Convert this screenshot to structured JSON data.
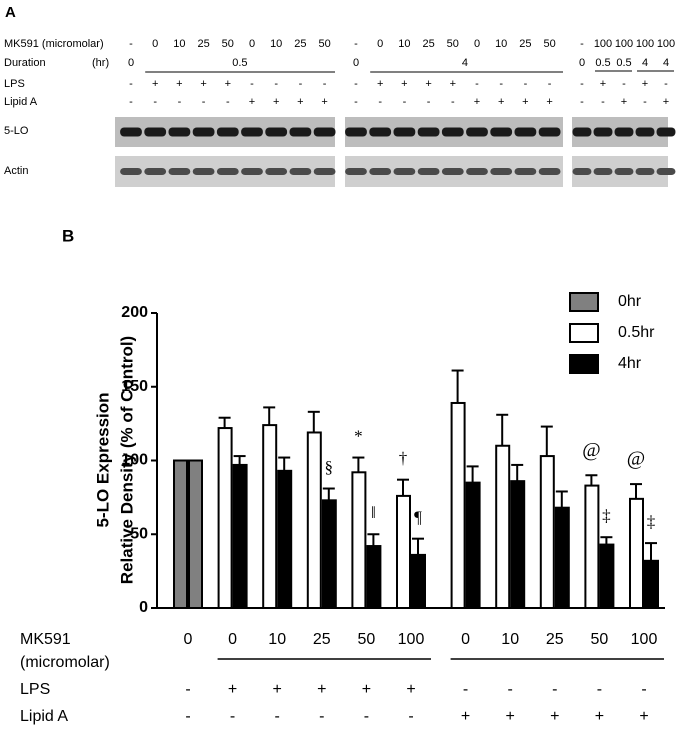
{
  "panel_a": {
    "label": "A",
    "row_labels": {
      "mk591": "MK591 (micromolar)",
      "duration": "Duration",
      "duration_unit": "(hr)",
      "lps": "LPS",
      "lipid_a": "Lipid A",
      "blot_5lo": "5-LO",
      "blot_actin": "Actin"
    },
    "groups": [
      {
        "mk591": [
          "-",
          "0",
          "10",
          "25",
          "50",
          "0",
          "10",
          "25",
          "50"
        ],
        "duration_control": "0",
        "duration": "0.5",
        "lps": [
          "-",
          "+",
          "+",
          "+",
          "+",
          "-",
          "-",
          "-",
          "-"
        ],
        "lipid_a": [
          "-",
          "-",
          "-",
          "-",
          "-",
          "+",
          "+",
          "+",
          "+"
        ]
      },
      {
        "mk591": [
          "-",
          "0",
          "10",
          "25",
          "50",
          "0",
          "10",
          "25",
          "50"
        ],
        "duration_control": "0",
        "duration": "4",
        "lps": [
          "-",
          "+",
          "+",
          "+",
          "+",
          "-",
          "-",
          "-",
          "-"
        ],
        "lipid_a": [
          "-",
          "-",
          "-",
          "-",
          "-",
          "+",
          "+",
          "+",
          "+"
        ]
      },
      {
        "mk591": [
          "-",
          "100",
          "100",
          "100",
          "100"
        ],
        "durations": [
          "0",
          "0.5",
          "0.5",
          "4",
          "4"
        ],
        "lps": [
          "-",
          "+",
          "-",
          "+",
          "-"
        ],
        "lipid_a": [
          "-",
          "-",
          "+",
          "-",
          "+"
        ]
      }
    ]
  },
  "chart_data": {
    "type": "bar",
    "panel_label": "B",
    "ylabel": [
      "5-LO Expression",
      "Relative Density (% of Control)"
    ],
    "x_label": [
      "MK591",
      "(micromolar)"
    ],
    "categories": [
      "0",
      "0",
      "10",
      "25",
      "50",
      "100",
      "0",
      "10",
      "25",
      "50",
      "100"
    ],
    "ylim": [
      0,
      200
    ],
    "yticks": [
      0,
      50,
      100,
      150,
      200
    ],
    "legend": "upper right",
    "series": [
      {
        "name": "0hr",
        "color": "#808080",
        "values": [
          100,
          null,
          null,
          null,
          null,
          null,
          null,
          null,
          null,
          null,
          null
        ]
      },
      {
        "name": "0hr",
        "color": "#808080",
        "values": [
          100,
          null,
          null,
          null,
          null,
          null,
          null,
          null,
          null,
          null,
          null
        ]
      },
      {
        "name": "0.5hr",
        "color": "#ffffff",
        "values": [
          null,
          122,
          124,
          119,
          92,
          76,
          139,
          110,
          103,
          83,
          74
        ],
        "errors": [
          null,
          7,
          12,
          14,
          10,
          11,
          22,
          21,
          20,
          7,
          10
        ],
        "annotations": [
          null,
          null,
          null,
          null,
          "*",
          "†",
          null,
          null,
          null,
          "@",
          "@"
        ]
      },
      {
        "name": "4hr",
        "color": "#000000",
        "values": [
          null,
          97,
          93,
          73,
          42,
          36,
          85,
          86,
          68,
          43,
          32
        ],
        "errors": [
          null,
          6,
          9,
          8,
          8,
          11,
          11,
          11,
          11,
          5,
          12
        ],
        "annotations": [
          null,
          null,
          null,
          "§",
          "‖",
          "¶",
          null,
          null,
          null,
          "‡",
          "‡"
        ]
      }
    ],
    "rows": [
      {
        "label": "LPS",
        "values": [
          "-",
          "+",
          "+",
          "+",
          "+",
          "+",
          "-",
          "-",
          "-",
          "-",
          "-"
        ]
      },
      {
        "label": "Lipid A",
        "values": [
          "-",
          "-",
          "-",
          "-",
          "-",
          "-",
          "+",
          "+",
          "+",
          "+",
          "+"
        ]
      }
    ]
  }
}
